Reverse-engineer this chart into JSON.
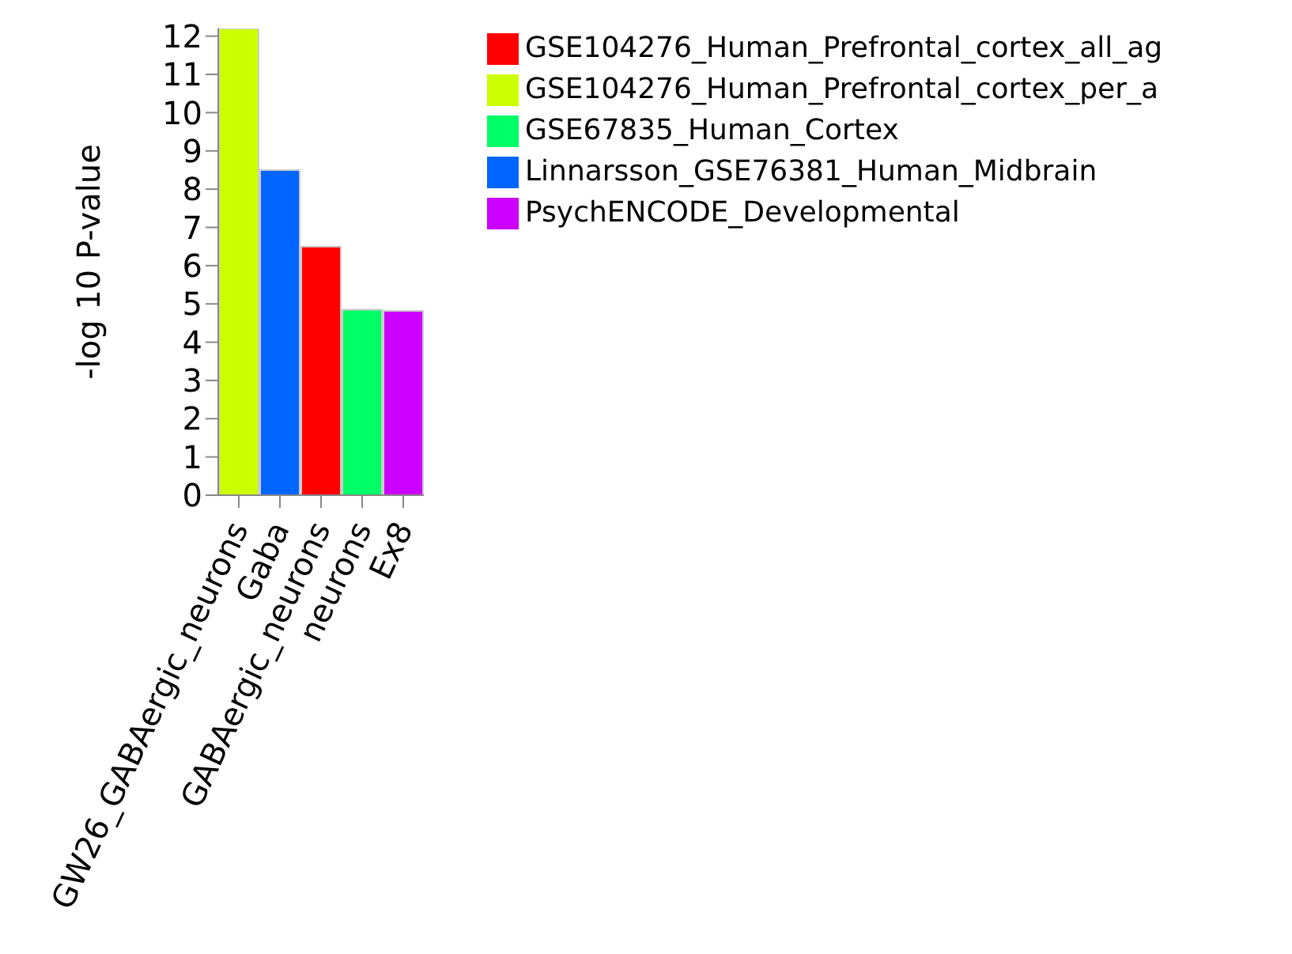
{
  "chart_data": {
    "type": "bar",
    "stacked": true,
    "ylabel": "-log 10 P-value",
    "categories": [
      "GW26_GABAergic_neurons",
      "Gaba",
      "GABAergic_neurons",
      "neurons",
      "Ex8"
    ],
    "series": [
      {
        "name": "GSE104276_Human_Prefrontal_cortex_all_ag",
        "color": "#ff0000",
        "values": [
          null,
          null,
          6.5,
          null,
          null
        ]
      },
      {
        "name": "GSE104276_Human_Prefrontal_cortex_per_a",
        "color": "#ccff00",
        "values": [
          12.2,
          null,
          null,
          null,
          null
        ]
      },
      {
        "name": "GSE67835_Human_Cortex",
        "color": "#00ff66",
        "values": [
          null,
          null,
          null,
          4.85,
          null
        ]
      },
      {
        "name": "Linnarsson_GSE76381_Human_Midbrain",
        "color": "#0066ff",
        "values": [
          null,
          8.5,
          null,
          null,
          null
        ]
      },
      {
        "name": "PsychENCODE_Developmental",
        "color": "#cc00ff",
        "values": [
          null,
          null,
          null,
          null,
          4.82
        ]
      }
    ],
    "ylim": [
      0,
      12.2
    ],
    "yticks": [
      0,
      1,
      2,
      3,
      4,
      5,
      6,
      7,
      8,
      9,
      10,
      11,
      12
    ],
    "grid": false,
    "legend": "right"
  }
}
